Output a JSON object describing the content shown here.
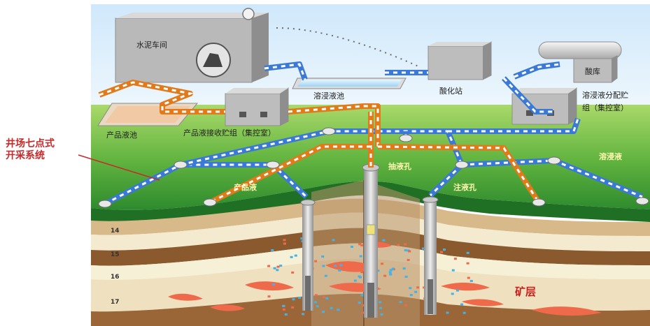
{
  "side_title": [
    "井场七点式",
    "开采系统"
  ],
  "labels": {
    "cement_workshop": "水泥车间",
    "leach_pool": "溶浸液池",
    "acid_station": "酸化站",
    "acid_store": "酸库",
    "leach_distribution_line1": "溶浸液分配贮",
    "leach_distribution_line2": "组（集控室）",
    "product_pool": "产品液池",
    "product_collection": "产品液接收贮组（集控室）",
    "product_liquid": "产品液",
    "leach_liquid": "溶浸液",
    "extraction_well": "抽液孔",
    "injection_well": "注液孔",
    "ore_layer": "矿层"
  },
  "layers": [
    "14",
    "15",
    "16",
    "17"
  ],
  "colors": {
    "sky": "#dbeefa",
    "grass_light": "#8fce4a",
    "grass_dark": "#2f8a2f",
    "pipe_blue": "#3a7ad6",
    "pipe_orange": "#e07a1a",
    "building": "#bdbdbd",
    "ore": "#ef6a4a",
    "injection_dot": "#43b2e8"
  }
}
